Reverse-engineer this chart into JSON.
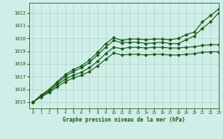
{
  "title": "Graphe pression niveau de la mer (hPa)",
  "bg_color": "#d0eee8",
  "grid_color": "#a8cfc4",
  "line_color": "#1a5c1a",
  "xlim": [
    -0.5,
    23
  ],
  "ylim": [
    1014.5,
    1022.8
  ],
  "yticks": [
    1015,
    1016,
    1017,
    1018,
    1019,
    1020,
    1021,
    1022
  ],
  "xticks": [
    0,
    1,
    2,
    3,
    4,
    5,
    6,
    7,
    8,
    9,
    10,
    11,
    12,
    13,
    14,
    15,
    16,
    17,
    18,
    19,
    20,
    21,
    22,
    23
  ],
  "series": [
    {
      "comment": "top line - rises steeply to 1022+ at end",
      "x": [
        0,
        1,
        2,
        3,
        4,
        5,
        6,
        7,
        8,
        9,
        10,
        11,
        12,
        13,
        14,
        15,
        16,
        17,
        18,
        19,
        20,
        21,
        22,
        23
      ],
      "y": [
        1015.0,
        1015.55,
        1016.0,
        1016.6,
        1017.15,
        1017.55,
        1017.85,
        1018.3,
        1018.9,
        1019.6,
        1020.05,
        1019.85,
        1019.95,
        1019.95,
        1019.9,
        1019.95,
        1019.95,
        1019.9,
        1020.0,
        1020.3,
        1020.5,
        1021.3,
        1021.8,
        1022.3
      ]
    },
    {
      "comment": "second line - rises to 1020 at hour 10-11, then slowly rises to 1022",
      "x": [
        0,
        1,
        2,
        3,
        4,
        5,
        6,
        7,
        8,
        9,
        10,
        11,
        12,
        13,
        14,
        15,
        16,
        17,
        18,
        19,
        20,
        21,
        22,
        23
      ],
      "y": [
        1015.0,
        1015.5,
        1015.95,
        1016.5,
        1017.0,
        1017.4,
        1017.7,
        1018.1,
        1018.7,
        1019.3,
        1019.85,
        1019.65,
        1019.7,
        1019.7,
        1019.6,
        1019.65,
        1019.7,
        1019.6,
        1019.6,
        1019.9,
        1020.2,
        1020.8,
        1021.3,
        1022.0
      ]
    },
    {
      "comment": "third line - rises to ~1019.5, flattens, then goes to ~1019.5 at end",
      "x": [
        0,
        1,
        2,
        3,
        4,
        5,
        6,
        7,
        8,
        9,
        10,
        11,
        12,
        13,
        14,
        15,
        16,
        17,
        18,
        19,
        20,
        21,
        22,
        23
      ],
      "y": [
        1015.0,
        1015.45,
        1015.85,
        1016.35,
        1016.8,
        1017.1,
        1017.35,
        1017.7,
        1018.2,
        1018.8,
        1019.3,
        1019.2,
        1019.3,
        1019.3,
        1019.25,
        1019.3,
        1019.3,
        1019.25,
        1019.25,
        1019.3,
        1019.35,
        1019.45,
        1019.5,
        1019.5
      ]
    },
    {
      "comment": "bottom line - rises slowly, ends ~1019.5",
      "x": [
        0,
        1,
        2,
        3,
        4,
        5,
        6,
        7,
        8,
        9,
        10,
        11,
        12,
        13,
        14,
        15,
        16,
        17,
        18,
        19,
        20,
        21,
        22,
        23
      ],
      "y": [
        1015.0,
        1015.4,
        1015.75,
        1016.2,
        1016.6,
        1016.9,
        1017.1,
        1017.4,
        1017.85,
        1018.35,
        1018.85,
        1018.7,
        1018.75,
        1018.75,
        1018.7,
        1018.75,
        1018.75,
        1018.7,
        1018.7,
        1018.75,
        1018.8,
        1018.9,
        1018.95,
        1018.95
      ]
    }
  ],
  "markersize": 2.5,
  "linewidth": 0.9
}
